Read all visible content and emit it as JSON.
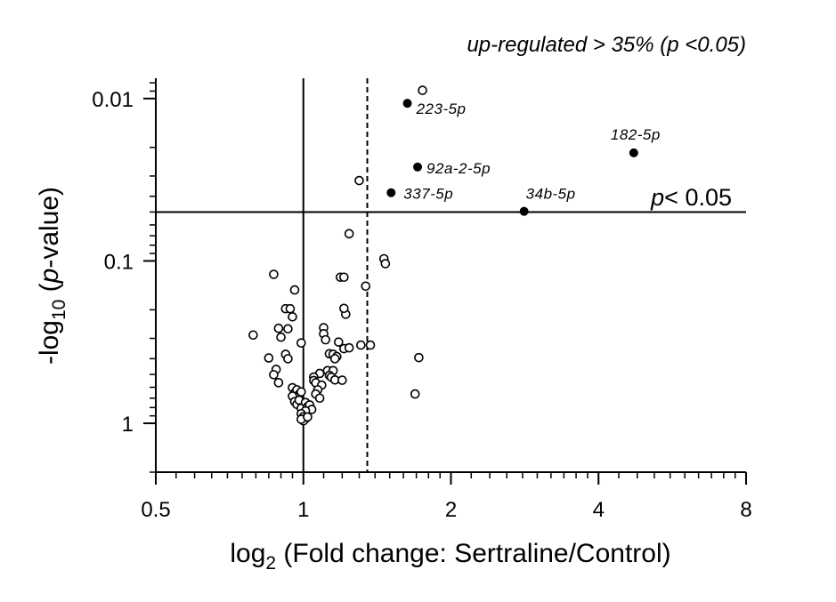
{
  "chart_data": {
    "type": "scatter",
    "title": "up-regulated > 35% (p <0.05)",
    "x_axis": {
      "label_prefix": "log",
      "label_sub": "2",
      "label_rest": " (Fold change: Sertraline/Control)",
      "scale": "log2",
      "range": [
        0.5,
        8
      ],
      "ticks": [
        0.5,
        1,
        2,
        4,
        8
      ],
      "tick_labels": [
        "0.5",
        "1",
        "2",
        "4",
        "8"
      ]
    },
    "y_axis": {
      "label_prefix": "-log",
      "label_sub": "10",
      "label_mid_open": " (",
      "label_italic": "p",
      "label_rest": "-value)",
      "scale": "log10-reversed",
      "range": [
        2.0,
        0.0075
      ],
      "ticks": [
        0.01,
        0.1,
        1
      ],
      "tick_labels": [
        "0.01",
        "0.1",
        "1"
      ]
    },
    "reference_lines": {
      "fold_change_reference": 1,
      "fold_change_threshold": 1.35,
      "p_threshold": 0.05,
      "p_threshold_label_italic": "p",
      "p_threshold_label_rest": "< 0.05"
    },
    "significant_points": [
      {
        "label": "223-5p",
        "fc": 1.63,
        "p": 0.0107
      },
      {
        "label": "182-5p",
        "fc": 4.72,
        "p": 0.0216
      },
      {
        "label": "92a-2-5p",
        "fc": 1.71,
        "p": 0.0264
      },
      {
        "label": "337-5p",
        "fc": 1.51,
        "p": 0.038
      },
      {
        "label": "34b-5p",
        "fc": 2.82,
        "p": 0.0495
      }
    ],
    "other_points": [
      [
        1.75,
        0.0089
      ],
      [
        1.3,
        0.032
      ],
      [
        1.24,
        0.068
      ],
      [
        1.46,
        0.097
      ],
      [
        1.47,
        0.104
      ],
      [
        0.87,
        0.121
      ],
      [
        1.19,
        0.126
      ],
      [
        1.21,
        0.126
      ],
      [
        1.34,
        0.143
      ],
      [
        0.96,
        0.151
      ],
      [
        0.92,
        0.197
      ],
      [
        0.94,
        0.197
      ],
      [
        1.22,
        0.213
      ],
      [
        1.21,
        0.196
      ],
      [
        0.95,
        0.221
      ],
      [
        0.89,
        0.26
      ],
      [
        0.93,
        0.262
      ],
      [
        1.1,
        0.258
      ],
      [
        0.9,
        0.295
      ],
      [
        0.79,
        0.286
      ],
      [
        1.1,
        0.281
      ],
      [
        1.11,
        0.306
      ],
      [
        1.18,
        0.316
      ],
      [
        0.99,
        0.32
      ],
      [
        1.21,
        0.347
      ],
      [
        1.24,
        0.343
      ],
      [
        1.31,
        0.33
      ],
      [
        1.37,
        0.33
      ],
      [
        1.13,
        0.373
      ],
      [
        1.15,
        0.376
      ],
      [
        1.17,
        0.388
      ],
      [
        1.16,
        0.4
      ],
      [
        0.92,
        0.376
      ],
      [
        0.93,
        0.4
      ],
      [
        0.85,
        0.396
      ],
      [
        0.88,
        0.466
      ],
      [
        0.87,
        0.502
      ],
      [
        0.89,
        0.562
      ],
      [
        1.72,
        0.394
      ],
      [
        1.12,
        0.474
      ],
      [
        1.15,
        0.474
      ],
      [
        1.13,
        0.507
      ],
      [
        1.14,
        0.52
      ],
      [
        1.16,
        0.541
      ],
      [
        1.2,
        0.543
      ],
      [
        1.08,
        0.493
      ],
      [
        1.05,
        0.519
      ],
      [
        1.05,
        0.545
      ],
      [
        1.06,
        0.563
      ],
      [
        1.09,
        0.582
      ],
      [
        1.07,
        0.622
      ],
      [
        1.06,
        0.66
      ],
      [
        1.08,
        0.7
      ],
      [
        0.95,
        0.604
      ],
      [
        0.96,
        0.652
      ],
      [
        0.97,
        0.622
      ],
      [
        0.98,
        0.664
      ],
      [
        0.97,
        0.694
      ],
      [
        0.99,
        0.64
      ],
      [
        0.95,
        0.68
      ],
      [
        0.96,
        0.735
      ],
      [
        0.97,
        0.765
      ],
      [
        0.98,
        0.72
      ],
      [
        0.99,
        0.808
      ],
      [
        1.01,
        0.745
      ],
      [
        1.02,
        0.79
      ],
      [
        1.03,
        0.771
      ],
      [
        1.04,
        0.822
      ],
      [
        1.01,
        0.838
      ],
      [
        0.99,
        0.873
      ],
      [
        1.0,
        0.912
      ],
      [
        1.01,
        0.935
      ],
      [
        1.0,
        0.966
      ],
      [
        0.99,
        0.945
      ],
      [
        1.02,
        0.914
      ],
      [
        1.69,
        0.66
      ]
    ]
  }
}
